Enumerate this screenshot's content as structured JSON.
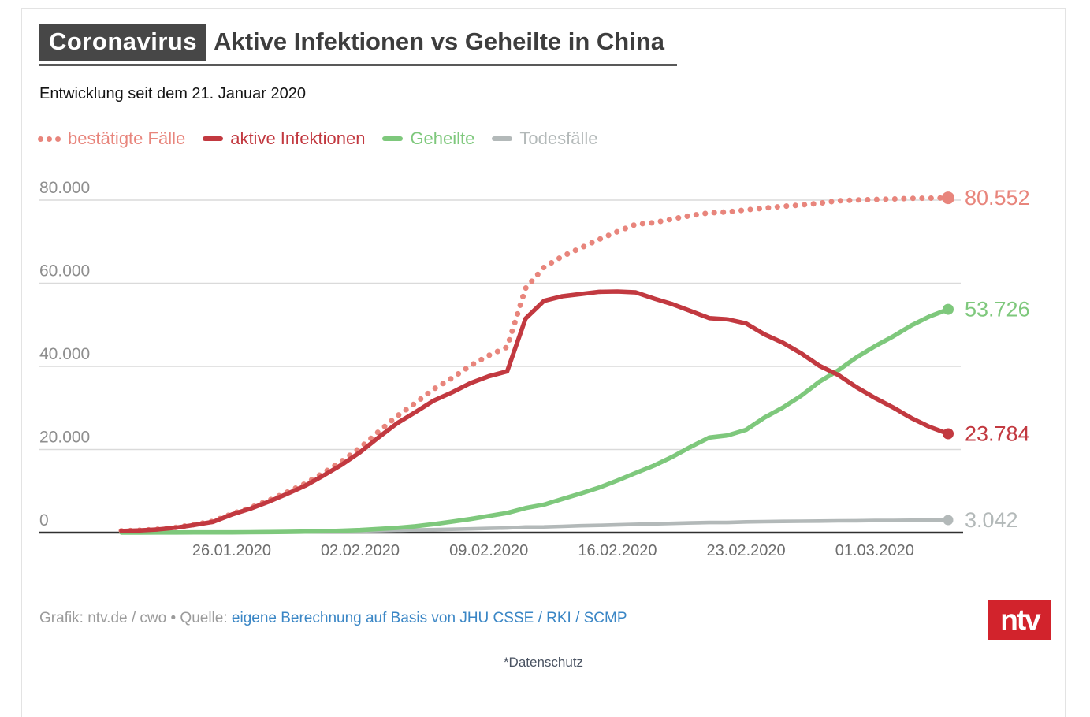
{
  "header": {
    "kicker": "Coronavirus",
    "title": "Aktive Infektionen vs Geheilte in China",
    "subtitle": "Entwicklung seit dem 21. Januar 2020"
  },
  "legend": [
    {
      "label": "bestätigte Fälle",
      "color": "#E8857C",
      "style": "dotted"
    },
    {
      "label": "aktive Infektionen",
      "color": "#C23940",
      "style": "solid"
    },
    {
      "label": "Geheilte",
      "color": "#7EC87C",
      "style": "solid"
    },
    {
      "label": "Todesfälle",
      "color": "#B3B9B9",
      "style": "solid"
    }
  ],
  "footer": {
    "credit_prefix": "Grafik: ntv.de / cwo • Quelle: ",
    "source_link": "eigene Berechnung auf Basis von JHU CSSE / RKI / SCMP",
    "privacy": "*Datenschutz",
    "logo_text": "ntv",
    "logo_color": "#D2232C",
    "link_color": "#3A86C5"
  },
  "chart_data": {
    "type": "line",
    "title": "Coronavirus: Aktive Infektionen vs Geheilte in China",
    "xlabel": "",
    "ylabel": "",
    "grid": true,
    "legend_position": "top",
    "ylim": [
      0,
      80000
    ],
    "y_ticks": [
      0,
      20000,
      40000,
      60000,
      80000
    ],
    "y_tick_labels": [
      "0",
      "20.000",
      "40.000",
      "60.000",
      "80.000"
    ],
    "x_ticks": [
      "26.01.2020",
      "02.02.2020",
      "09.02.2020",
      "16.02.2020",
      "23.02.2020",
      "01.03.2020"
    ],
    "x": [
      "20.01.2020",
      "21.01.2020",
      "22.01.2020",
      "23.01.2020",
      "24.01.2020",
      "25.01.2020",
      "26.01.2020",
      "27.01.2020",
      "28.01.2020",
      "29.01.2020",
      "30.01.2020",
      "31.01.2020",
      "01.02.2020",
      "02.02.2020",
      "03.02.2020",
      "04.02.2020",
      "05.02.2020",
      "06.02.2020",
      "07.02.2020",
      "08.02.2020",
      "09.02.2020",
      "10.02.2020",
      "11.02.2020",
      "12.02.2020",
      "13.02.2020",
      "14.02.2020",
      "15.02.2020",
      "16.02.2020",
      "17.02.2020",
      "18.02.2020",
      "19.02.2020",
      "20.02.2020",
      "21.02.2020",
      "22.02.2020",
      "23.02.2020",
      "24.02.2020",
      "25.02.2020",
      "26.02.2020",
      "27.02.2020",
      "28.02.2020",
      "29.02.2020",
      "01.03.2020",
      "02.03.2020",
      "03.03.2020",
      "04.03.2020",
      "05.03.2020"
    ],
    "series": [
      {
        "name": "bestätigte Fälle",
        "slug": "bestaetigte-faelle",
        "color": "#E8857C",
        "style": "dotted",
        "end_label": "80.552",
        "end_value": 80552,
        "values": [
          440,
          571,
          830,
          1287,
          1975,
          2744,
          4515,
          5974,
          7711,
          9692,
          11791,
          14380,
          17205,
          20438,
          24324,
          28018,
          31161,
          34546,
          37198,
          40171,
          42638,
          44653,
          58761,
          63851,
          66492,
          68500,
          70548,
          72436,
          74185,
          74576,
          75465,
          76288,
          76936,
          77150,
          77658,
          78064,
          78497,
          78824,
          79251,
          79824,
          80026,
          80151,
          80270,
          80409,
          80480,
          80552
        ]
      },
      {
        "name": "aktive Infektionen",
        "slug": "aktive-infektionen",
        "color": "#C23940",
        "style": "solid",
        "end_label": "23.784",
        "end_value": 23784,
        "values": [
          403,
          526,
          771,
          1208,
          1870,
          2613,
          4349,
          5739,
          7417,
          9308,
          11289,
          13748,
          16369,
          19381,
          22942,
          26302,
          28984,
          31774,
          33738,
          35982,
          37626,
          38800,
          51481,
          55745,
          56870,
          57412,
          57934,
          58016,
          57805,
          56303,
          54965,
          53284,
          51606,
          51311,
          50329,
          47725,
          45698,
          43150,
          40134,
          37987,
          35038,
          32429,
          30121,
          27572,
          25422,
          23784
        ]
      },
      {
        "name": "Geheilte",
        "slug": "geheilte",
        "color": "#7EC87C",
        "style": "solid",
        "end_label": "53.726",
        "end_value": 53726,
        "values": [
          28,
          28,
          34,
          38,
          49,
          51,
          60,
          103,
          124,
          171,
          243,
          328,
          475,
          632,
          892,
          1153,
          1540,
          2050,
          2649,
          3281,
          3996,
          4740,
          5911,
          6723,
          8096,
          9419,
          10844,
          12552,
          14376,
          16155,
          18264,
          20659,
          22888,
          23394,
          24734,
          27676,
          30084,
          32930,
          36329,
          39002,
          42118,
          44810,
          47204,
          49856,
          52045,
          53726
        ]
      },
      {
        "name": "Todesfälle",
        "slug": "todesfaelle",
        "color": "#B3B9B9",
        "style": "solid",
        "end_label": "3.042",
        "end_value": 3042,
        "values": [
          9,
          17,
          25,
          41,
          56,
          80,
          106,
          132,
          170,
          213,
          259,
          304,
          361,
          425,
          490,
          563,
          637,
          722,
          811,
          908,
          1016,
          1113,
          1369,
          1383,
          1526,
          1669,
          1770,
          1868,
          2004,
          2118,
          2236,
          2345,
          2442,
          2445,
          2595,
          2663,
          2715,
          2744,
          2788,
          2835,
          2870,
          2912,
          2945,
          2981,
          3013,
          3042
        ]
      }
    ],
    "axis_colors": {
      "y_label": "#8E8E8E",
      "x_label": "#6D6D6D",
      "gridline": "#DADADA",
      "zero_line": "#303030"
    }
  }
}
